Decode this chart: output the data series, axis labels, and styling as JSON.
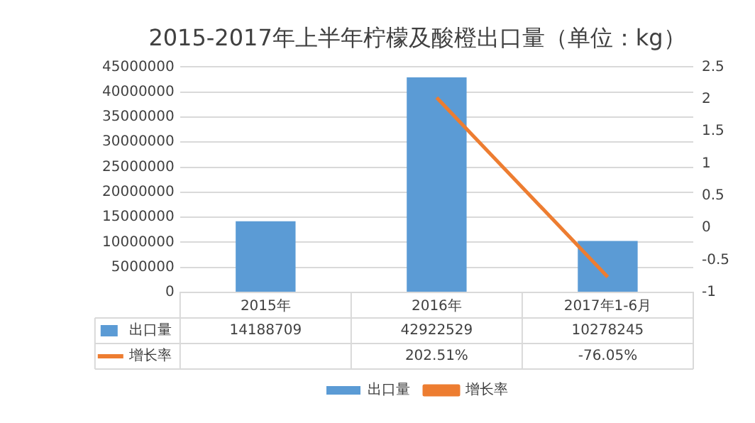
{
  "chart_data": {
    "type": "bar",
    "title": "2015-2017年上半年柠檬及酸橙出口量（单位：kg）",
    "categories": [
      "2015年",
      "2016年",
      "2017年1-6月"
    ],
    "series": [
      {
        "name": "出口量",
        "color": "#5b9bd5",
        "values": [
          14188709,
          42922529,
          10278245
        ],
        "value_labels": [
          "14188709",
          "42922529",
          "10278245"
        ]
      },
      {
        "name": "增长率",
        "type": "line",
        "axis": "y2",
        "color": "#ed7d31",
        "values": [
          null,
          2.0251,
          -0.7605
        ],
        "value_labels": [
          null,
          "202.51%",
          "-76.05%"
        ],
        "marker": "none"
      }
    ],
    "ylim": [
      0,
      45000000
    ],
    "yticks": [
      0,
      5000000,
      10000000,
      15000000,
      20000000,
      25000000,
      30000000,
      35000000,
      40000000,
      45000000
    ],
    "y2lim": [
      -1,
      2.5
    ],
    "y2ticks": [
      -1,
      -0.5,
      0,
      0.5,
      1,
      1.5,
      2,
      2.5
    ],
    "grid": "y",
    "legend": "bottom"
  }
}
